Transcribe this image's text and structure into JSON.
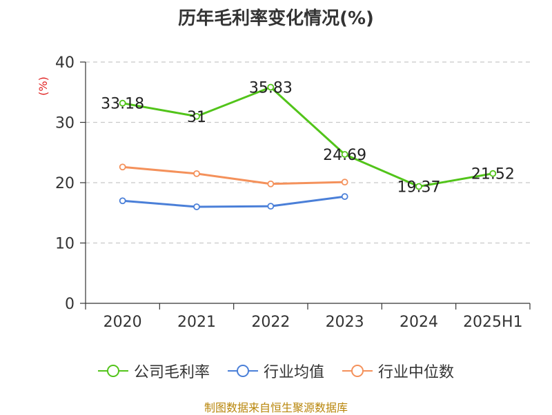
{
  "title": "历年毛利率变化情况(%)",
  "source": "制图数据来自恒生聚源数据库",
  "chart_data": {
    "type": "line",
    "title": "历年毛利率变化情况(%)",
    "ylabel": "(%)",
    "xlabel": "",
    "categories": [
      "2020",
      "2021",
      "2022",
      "2023",
      "2024",
      "2025H1"
    ],
    "ylim": [
      0,
      40
    ],
    "yticks": [
      0,
      10,
      20,
      30,
      40
    ],
    "grid": true,
    "legend_position": "bottom",
    "series": [
      {
        "name": "公司毛利率",
        "color": "#52c41a",
        "values": [
          33.18,
          31,
          35.83,
          24.69,
          19.37,
          21.52
        ],
        "labels": true
      },
      {
        "name": "行业均值",
        "color": "#4a7fd8",
        "values": [
          17.0,
          16.0,
          16.1,
          17.7,
          null,
          null
        ],
        "labels": false
      },
      {
        "name": "行业中位数",
        "color": "#f4915b",
        "values": [
          22.6,
          21.5,
          19.8,
          20.1,
          null,
          null
        ],
        "labels": false
      }
    ]
  }
}
